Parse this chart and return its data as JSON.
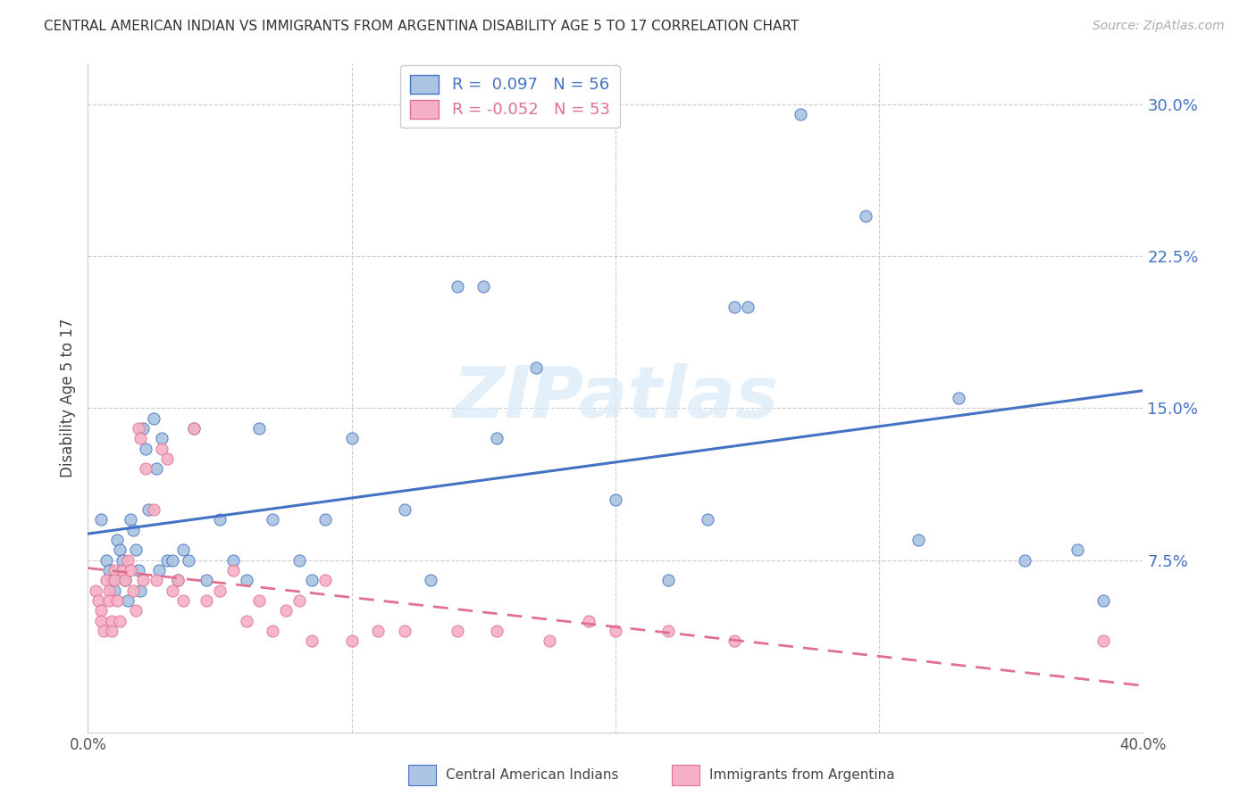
{
  "title": "CENTRAL AMERICAN INDIAN VS IMMIGRANTS FROM ARGENTINA DISABILITY AGE 5 TO 17 CORRELATION CHART",
  "source": "Source: ZipAtlas.com",
  "ylabel": "Disability Age 5 to 17",
  "xlim": [
    0.0,
    0.4
  ],
  "ylim": [
    -0.01,
    0.32
  ],
  "xticks": [
    0.0,
    0.1,
    0.2,
    0.3,
    0.4
  ],
  "xticklabels": [
    "0.0%",
    "",
    "",
    "",
    "40.0%"
  ],
  "yticks": [
    0.075,
    0.15,
    0.225,
    0.3
  ],
  "yticklabels": [
    "7.5%",
    "15.0%",
    "22.5%",
    "30.0%"
  ],
  "blue_R": "0.097",
  "blue_N": "56",
  "pink_R": "-0.052",
  "pink_N": "53",
  "blue_color": "#aac4e2",
  "pink_color": "#f5b0c5",
  "blue_line_color": "#4472c4",
  "pink_line_color": "#e07090",
  "legend_label_blue": "Central American Indians",
  "legend_label_pink": "Immigrants from Argentina",
  "watermark": "ZIPatlas",
  "grid_color": "#cccccc",
  "blue_scatter_x": [
    0.005,
    0.007,
    0.008,
    0.009,
    0.01,
    0.011,
    0.012,
    0.013,
    0.014,
    0.015,
    0.016,
    0.017,
    0.018,
    0.019,
    0.02,
    0.021,
    0.022,
    0.023,
    0.025,
    0.026,
    0.027,
    0.028,
    0.03,
    0.032,
    0.034,
    0.036,
    0.038,
    0.04,
    0.045,
    0.05,
    0.055,
    0.06,
    0.065,
    0.07,
    0.08,
    0.085,
    0.09,
    0.1,
    0.12,
    0.13,
    0.14,
    0.15,
    0.155,
    0.17,
    0.2,
    0.22,
    0.235,
    0.245,
    0.25,
    0.27,
    0.295,
    0.315,
    0.33,
    0.355,
    0.375,
    0.385
  ],
  "blue_scatter_y": [
    0.095,
    0.075,
    0.07,
    0.065,
    0.06,
    0.085,
    0.08,
    0.075,
    0.065,
    0.055,
    0.095,
    0.09,
    0.08,
    0.07,
    0.06,
    0.14,
    0.13,
    0.1,
    0.145,
    0.12,
    0.07,
    0.135,
    0.075,
    0.075,
    0.065,
    0.08,
    0.075,
    0.14,
    0.065,
    0.095,
    0.075,
    0.065,
    0.14,
    0.095,
    0.075,
    0.065,
    0.095,
    0.135,
    0.1,
    0.065,
    0.21,
    0.21,
    0.135,
    0.17,
    0.105,
    0.065,
    0.095,
    0.2,
    0.2,
    0.295,
    0.245,
    0.085,
    0.155,
    0.075,
    0.08,
    0.055
  ],
  "pink_scatter_x": [
    0.003,
    0.004,
    0.005,
    0.005,
    0.006,
    0.007,
    0.008,
    0.008,
    0.009,
    0.009,
    0.01,
    0.01,
    0.011,
    0.012,
    0.013,
    0.014,
    0.015,
    0.016,
    0.017,
    0.018,
    0.019,
    0.02,
    0.021,
    0.022,
    0.025,
    0.026,
    0.028,
    0.03,
    0.032,
    0.034,
    0.036,
    0.04,
    0.045,
    0.05,
    0.055,
    0.06,
    0.065,
    0.07,
    0.075,
    0.08,
    0.085,
    0.09,
    0.1,
    0.11,
    0.12,
    0.14,
    0.155,
    0.175,
    0.19,
    0.2,
    0.22,
    0.245,
    0.385
  ],
  "pink_scatter_y": [
    0.06,
    0.055,
    0.05,
    0.045,
    0.04,
    0.065,
    0.06,
    0.055,
    0.045,
    0.04,
    0.07,
    0.065,
    0.055,
    0.045,
    0.07,
    0.065,
    0.075,
    0.07,
    0.06,
    0.05,
    0.14,
    0.135,
    0.065,
    0.12,
    0.1,
    0.065,
    0.13,
    0.125,
    0.06,
    0.065,
    0.055,
    0.14,
    0.055,
    0.06,
    0.07,
    0.045,
    0.055,
    0.04,
    0.05,
    0.055,
    0.035,
    0.065,
    0.035,
    0.04,
    0.04,
    0.04,
    0.04,
    0.035,
    0.045,
    0.04,
    0.04,
    0.035,
    0.035
  ]
}
